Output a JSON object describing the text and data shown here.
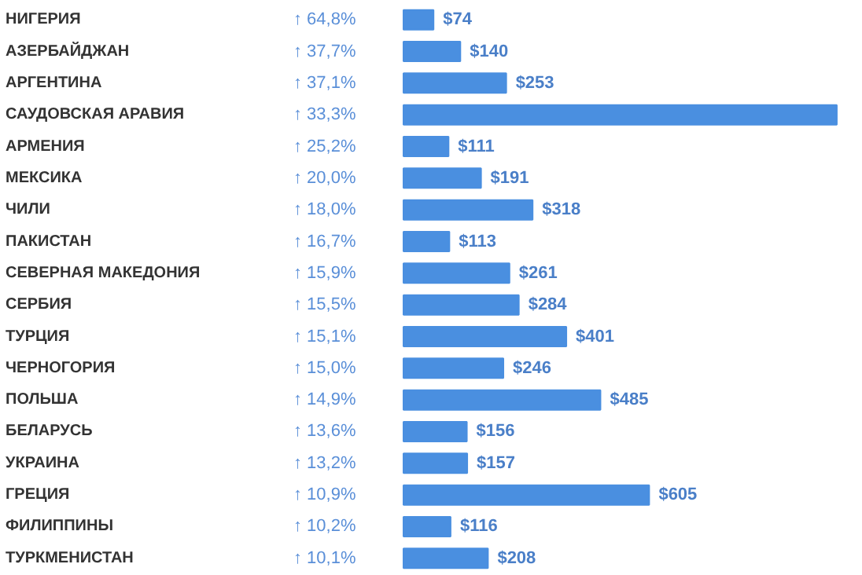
{
  "chart_data": {
    "type": "bar",
    "orientation": "horizontal",
    "categories": [
      "НИГЕРИЯ",
      "АЗЕРБАЙДЖАН",
      "АРГЕНТИНА",
      "САУДОВСКАЯ АРАВИЯ",
      "АРМЕНИЯ",
      "МЕКСИКА",
      "ЧИЛИ",
      "ПАКИСТАН",
      "СЕВЕРНАЯ МАКЕДОНИЯ",
      "СЕРБИЯ",
      "ТУРЦИЯ",
      "ЧЕРНОГОРИЯ",
      "ПОЛЬША",
      "БЕЛАРУСЬ",
      "УКРАИНА",
      "ГРЕЦИЯ",
      "ФИЛИППИНЫ",
      "ТУРКМЕНИСТАН"
    ],
    "series": [
      {
        "color": "#4a8fe0",
        "values": [
          74,
          140,
          253,
          1067,
          111,
          191,
          318,
          113,
          261,
          284,
          401,
          246,
          485,
          156,
          157,
          605,
          116,
          208
        ],
        "value_labels": [
          "$74",
          "$140",
          "$253",
          null,
          "$111",
          "$191",
          "$318",
          "$113",
          "$261",
          "$284",
          "$401",
          "$246",
          "$485",
          "$156",
          "$157",
          "$605",
          "$116",
          "$208"
        ]
      }
    ],
    "annotations": [
      "↑ 64,8%",
      "↑ 37,7%",
      "↑ 37,1%",
      "↑ 33,3%",
      "↑ 25,2%",
      "↑ 20,0%",
      "↑ 18,0%",
      "↑ 16,7%",
      "↑ 15,9%",
      "↑ 15,5%",
      "↑ 15,1%",
      "↑ 15,0%",
      "↑ 14,9%",
      "↑ 13,6%",
      "↑ 13,2%",
      "↑ 10,9%",
      "↑ 10,2%",
      "↑ 10,1%"
    ]
  }
}
